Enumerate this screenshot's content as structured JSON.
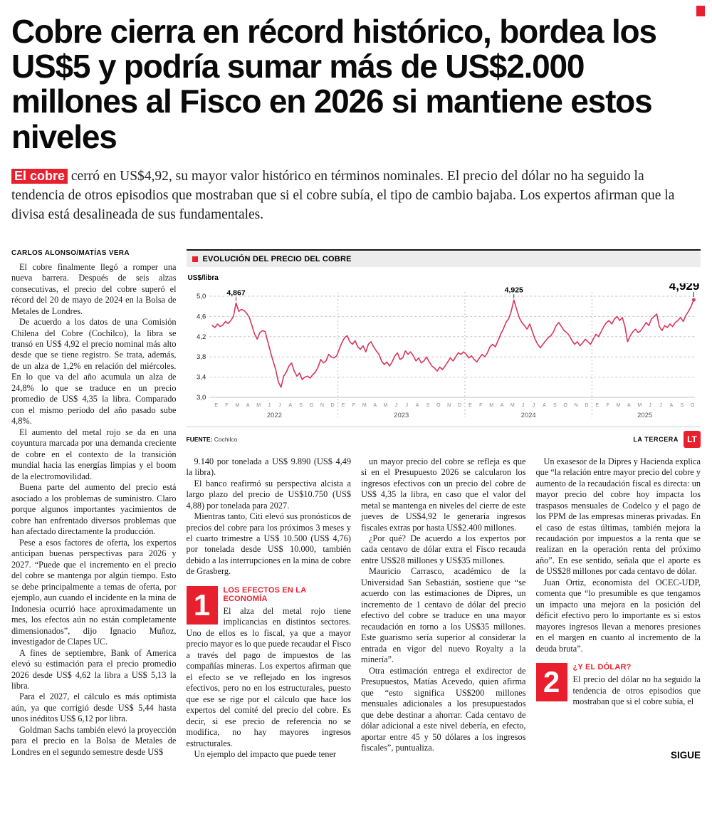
{
  "colors": {
    "red": "#e8202e",
    "chart_line": "#d9365b"
  },
  "article": {
    "headline": "Cobre cierra en récord histórico, bordea los US$5 y podría sumar más de US$2.000 millones al Fisco en 2026 si mantiene estos niveles",
    "lead": {
      "highlight": "El cobre",
      "rest": " cerró en US$4,92, su mayor valor histórico en términos nominales. El precio del dólar no ha seguido la tendencia de otros episodios que mostraban que si el cobre subía, el tipo de cambio bajaba. Los expertos afirman que la divisa está desalineada de sus fundamentales."
    },
    "byline": "CARLOS ALONSO/MATÍAS VERA",
    "columns": {
      "col1": [
        "El cobre finalmente llegó a romper una nueva barrera. Después de seis alzas consecutivas, el precio del cobre superó el récord del 20 de mayo de 2024 en la Bolsa de Metales de Londres.",
        "De acuerdo a los datos de una Comisión Chilena del Cobre (Cochilco), la libra se transó en US$ 4,92 el precio nominal más alto desde que se tiene registro. Se trata, además, de un alza de 1,2% en relación del miércoles. En lo que va del año acumula un alza de 24,8% lo que se traduce en un precio promedio de US$ 4,35 la libra. Comparado con el mismo periodo del año pasado sube 4,8%.",
        "El aumento del metal rojo se da en una coyuntura marcada por una demanda creciente de cobre en el contexto de la transición mundial hacia las energías limpias y el boom de la electromovilidad.",
        "Buena parte del aumento del precio está asociado a los problemas de suministro. Claro porque algunos importantes yacimientos de cobre han enfrentado diversos problemas que han afectado directamente la producción.",
        "Pese a esos factores de oferta, los expertos anticipan buenas perspectivas para 2026 y 2027. “Puede que el incremento en el precio del cobre se mantenga por algún tiempo. Esto se debe principalmente a temas de oferta, por ejemplo, aun cuando el incidente en la mina de Indonesia ocurrió hace aproximadamente un mes, los efectos aún no están completamente dimensionados”, dijo Ignacio Muñoz, investigador de Clapes UC.",
        "A fines de septiembre, Bank of America elevó su estimación para el precio promedio 2026 desde US$ 4,62 la libra a US$ 5,13 la libra.",
        "Para el 2027, el cálculo es más optimista aún, ya que corrigió desde US$ 5,44 hasta unos inéditos US$ 6,12 por libra.",
        "Goldman Sachs también elevó la proyección para el precio en la Bolsa de Metales de Londres en el segundo semestre desde US$"
      ],
      "col2_intro": [
        "9.140 por tonelada a US$ 9.890 (US$ 4,49 la libra).",
        "El banco reafirmó su perspectiva alcista a largo plazo del precio de US$10.750 (US$ 4,88) por tonelada para 2027.",
        "Mientras tanto, Citi elevó sus pronósticos de precios del cobre para los próximos 3 meses y el cuarto trimestre a US$ 10.500 (US$ 4,76) por tonelada desde US$ 10.000, también debido a las interrupciones en la mina de cobre de Grasberg."
      ],
      "col3": [
        "un mayor precio del cobre se refleja es que si en el Presupuesto 2026 se calcularon los ingresos efectivos con un precio del cobre de US$ 4,35 la libra, en caso que el valor del metal se mantenga en niveles del cierre de este jueves de US$4,92 le generaría ingresos fiscales extras por hasta US$2.400 millones.",
        "¿Por qué? De acuerdo a los expertos por cada centavo de dólar extra el Fisco recauda entre US$28 millones y US$35 millones.",
        "Mauricio Carrasco, académico de la Universidad San Sebastián, sostiene que “se acuerdo con las estimaciones de Dipres, un incremento de 1 centavo de dólar del precio efectivo del cobre se traduce en una mayor recaudación en torno a los US$35 millones. Este guarismo sería superior al considerar la entrada en vigor del nuevo Royalty a la minería”.",
        "Otra estimación entrega el exdirector de Presupuestos, Matías Acevedo, quien afirma que “esto significa US$200 millones mensuales adicionales a los presupuestados que debe destinar a ahorrar. Cada centavo de dólar adicional a este nivel debería, en efecto, aportar entre 45 y 50 dólares a los ingresos fiscales”, puntualiza."
      ],
      "col4_intro": [
        "Un exasesor de la Dipres y Hacienda explica que “la relación entre mayor precio del cobre y aumento de la recaudación fiscal es directa: un mayor precio del cobre hoy impacta los traspasos mensuales de Codelco y el pago de los PPM de las empresas mineras privadas. En el caso de estas últimas, también mejora la recaudación por impuestos a la renta que se realizan en la operación renta del próximo año”. En ese sentido, señala que el aporte es de US$28 millones por cada centavo de dólar.",
        "Juan Ortiz, economista del OCEC-UDP, comenta que “lo presumible es que tengamos un impacto una mejora en la posición del déficit efectivo pero lo importante es si estos mayores ingresos llevan a menores presiones en el margen en cuanto al incremento de la deuda bruta”."
      ]
    },
    "section1": {
      "number": "1",
      "title": "LOS EFECTOS EN LA ECONOMÍA",
      "paragraphs": [
        "El alza del metal rojo tiene implicancias en distintos sectores. Uno de ellos es lo fiscal, ya que a mayor precio mayor es lo que puede recaudar el Fisco a través del pago de impuestos de las compañías mineras. Los expertos afirman que el efecto se ve reflejado en los ingresos efectivos, pero no en los estructurales, puesto que ese se rige por el cálculo que hace los expertos del comité del precio del cobre. Es decir, si ese precio de referencia no se modifica, no hay mayores ingresos estructurales.",
        "Un ejemplo del impacto que puede tener"
      ]
    },
    "section2": {
      "number": "2",
      "title": "¿Y EL DÓLAR?",
      "paragraphs": [
        "El precio del dólar no ha seguido la tendencia de otros episodios que mostraban que si el cobre subía, el"
      ]
    },
    "continue_label": "SIGUE"
  },
  "chart_data": {
    "type": "line",
    "title": "EVOLUCIÓN DEL PRECIO DEL COBRE",
    "ylabel": "US$/libra",
    "source_label": "FUENTE:",
    "source_value": "Cochilco",
    "credit": "LA TERCERA",
    "logo": "LT",
    "ylim": [
      3.0,
      5.0
    ],
    "yticks": [
      5.0,
      4.6,
      4.2,
      3.8,
      3.4,
      3.0
    ],
    "years": [
      {
        "year": "2022",
        "months": [
          "E",
          "F",
          "M",
          "A",
          "M",
          "J",
          "J",
          "A",
          "S",
          "O",
          "N",
          "D"
        ]
      },
      {
        "year": "2023",
        "months": [
          "E",
          "F",
          "M",
          "A",
          "M",
          "J",
          "J",
          "A",
          "S",
          "O",
          "N",
          "D"
        ]
      },
      {
        "year": "2024",
        "months": [
          "E",
          "F",
          "M",
          "A",
          "M",
          "J",
          "J",
          "A",
          "S",
          "O",
          "N",
          "D"
        ]
      },
      {
        "year": "2025",
        "months": [
          "E",
          "F",
          "M",
          "A",
          "M",
          "J",
          "J",
          "A",
          "S",
          "O"
        ]
      }
    ],
    "values": [
      4.42,
      4.38,
      4.45,
      4.4,
      4.43,
      4.5,
      4.46,
      4.52,
      4.6,
      4.867,
      4.7,
      4.74,
      4.72,
      4.66,
      4.58,
      4.42,
      4.25,
      4.15,
      4.28,
      4.32,
      4.3,
      4.1,
      3.9,
      3.72,
      3.55,
      3.3,
      3.2,
      3.42,
      3.5,
      3.62,
      3.68,
      3.52,
      3.42,
      3.48,
      3.35,
      3.4,
      3.42,
      3.38,
      3.45,
      3.5,
      3.6,
      3.75,
      3.68,
      3.72,
      3.85,
      3.8,
      3.78,
      3.82,
      3.95,
      4.08,
      4.18,
      4.22,
      4.1,
      4.05,
      4.12,
      4.0,
      3.95,
      4.02,
      3.9,
      4.05,
      4.1,
      4.0,
      3.92,
      3.85,
      3.72,
      3.65,
      3.7,
      3.62,
      3.7,
      3.82,
      3.88,
      3.75,
      3.78,
      3.92,
      3.85,
      3.9,
      3.82,
      3.72,
      3.78,
      3.68,
      3.72,
      3.8,
      3.7,
      3.62,
      3.58,
      3.52,
      3.6,
      3.55,
      3.62,
      3.7,
      3.78,
      3.72,
      3.8,
      3.88,
      3.85,
      3.9,
      3.85,
      3.78,
      3.82,
      3.75,
      3.7,
      3.78,
      3.85,
      3.8,
      3.88,
      4.0,
      4.05,
      4.0,
      4.12,
      4.25,
      4.35,
      4.48,
      4.55,
      4.7,
      4.925,
      4.75,
      4.58,
      4.48,
      4.42,
      4.35,
      4.45,
      4.3,
      4.15,
      4.05,
      3.98,
      4.05,
      4.12,
      4.18,
      4.22,
      4.3,
      4.42,
      4.48,
      4.4,
      4.32,
      4.28,
      4.22,
      4.12,
      4.05,
      4.1,
      4.02,
      4.08,
      4.15,
      4.1,
      4.05,
      4.15,
      4.25,
      4.2,
      4.3,
      4.4,
      4.48,
      4.52,
      4.45,
      4.55,
      4.6,
      4.52,
      4.58,
      4.4,
      4.1,
      4.22,
      4.3,
      4.35,
      4.28,
      4.32,
      4.4,
      4.48,
      4.42,
      4.55,
      4.6,
      4.65,
      4.4,
      4.32,
      4.42,
      4.38,
      4.45,
      4.4,
      4.48,
      4.52,
      4.58,
      4.5,
      4.62,
      4.7,
      4.8,
      4.929
    ],
    "annotations": [
      {
        "label": "4,867",
        "index": 9,
        "value": 4.867,
        "big": false
      },
      {
        "label": "4,925",
        "index": 114,
        "value": 4.925,
        "big": false
      },
      {
        "label": "4,929",
        "index": 182,
        "value": 4.929,
        "big": true
      }
    ]
  }
}
